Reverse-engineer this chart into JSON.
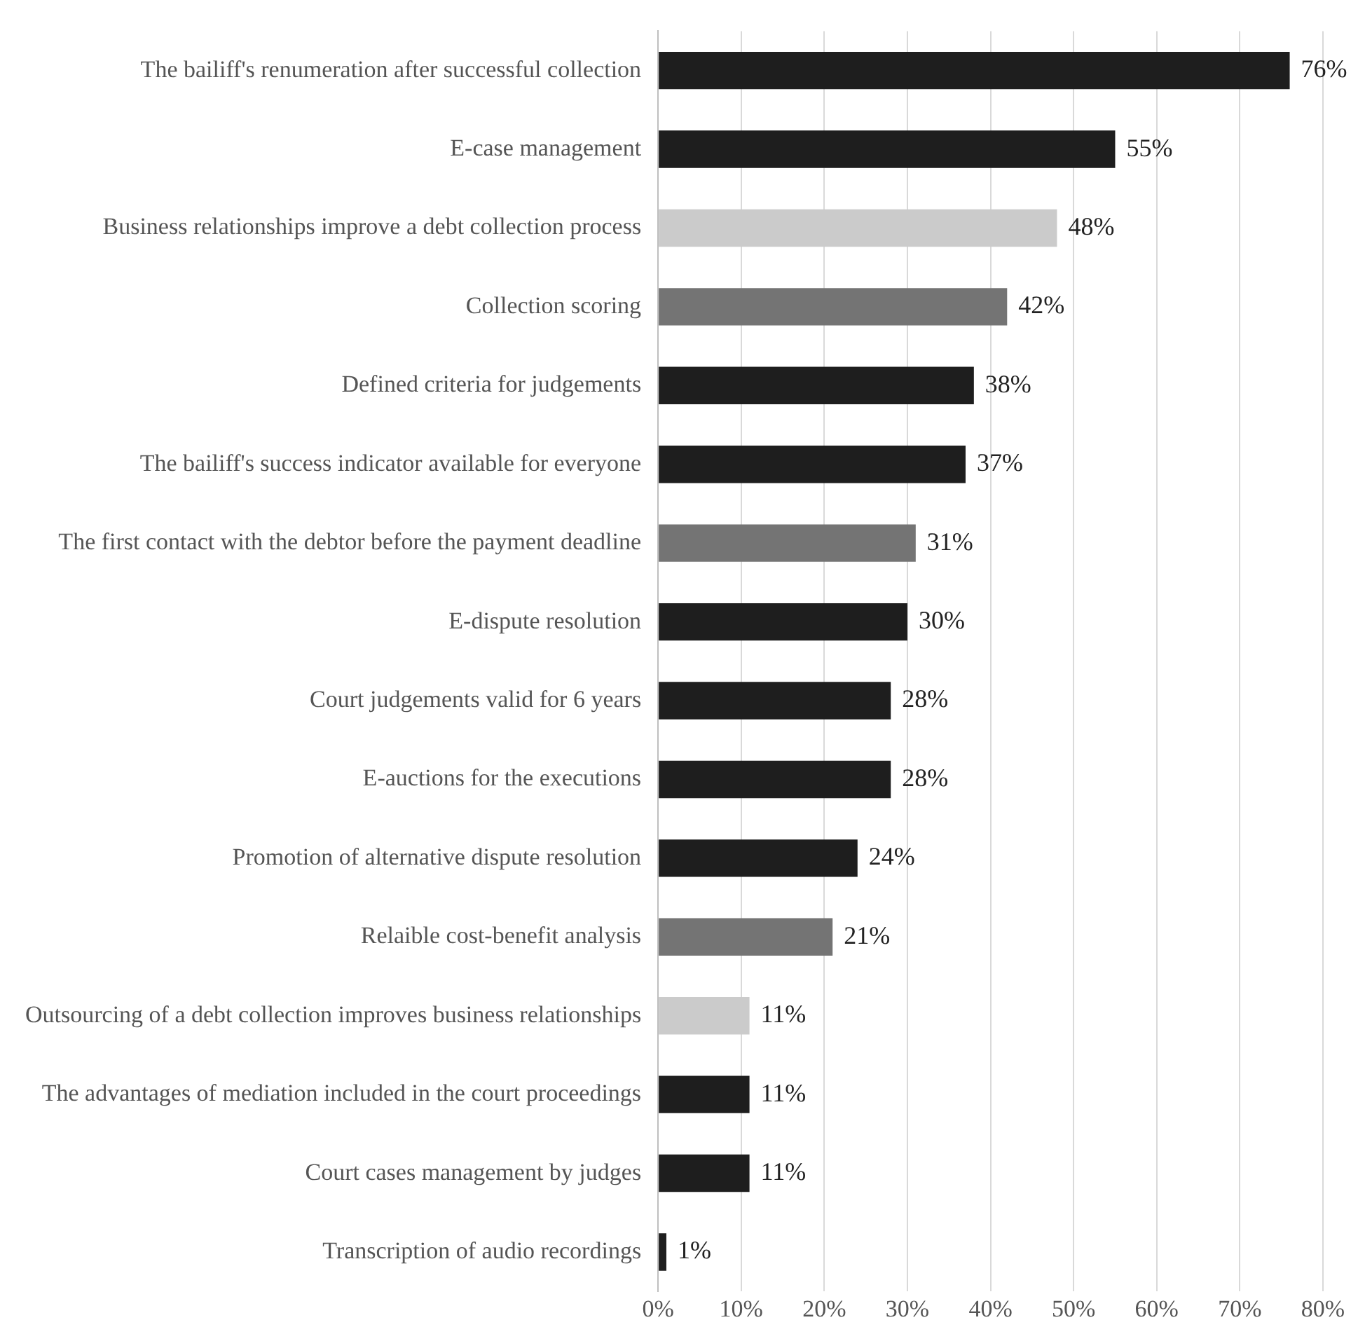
{
  "chart_data": {
    "type": "bar",
    "orientation": "horizontal",
    "categories": [
      "The bailiff's renumeration after successful collection",
      "E-case management",
      "Business relationships improve a debt collection process",
      "Collection scoring",
      "Defined criteria for judgements",
      "The bailiff's success indicator available for everyone",
      "The first contact with the debtor before the payment deadline",
      "E-dispute resolution",
      "Court judgements valid for 6 years",
      "E-auctions for the executions",
      "Promotion of alternative dispute resolution",
      "Relaible cost-benefit analysis",
      "Outsourcing of a debt collection improves business relationships",
      "The advantages of mediation included in the court proceedings",
      "Court cases management by judges",
      "Transcription of audio recordings"
    ],
    "values": [
      76,
      55,
      48,
      42,
      38,
      37,
      31,
      30,
      28,
      28,
      24,
      21,
      11,
      11,
      11,
      1
    ],
    "colors": [
      "#1e1e1e",
      "#1e1e1e",
      "#cbcbcb",
      "#747474",
      "#1e1e1e",
      "#1e1e1e",
      "#747474",
      "#1e1e1e",
      "#1e1e1e",
      "#1e1e1e",
      "#1e1e1e",
      "#747474",
      "#cbcbcb",
      "#1e1e1e",
      "#1e1e1e",
      "#1e1e1e"
    ],
    "value_labels": [
      "76%",
      "55%",
      "48%",
      "42%",
      "38%",
      "37%",
      "31%",
      "30%",
      "28%",
      "28%",
      "24%",
      "21%",
      "11%",
      "11%",
      "11%",
      "1%"
    ],
    "xlim": [
      0,
      80
    ],
    "xticks": [
      {
        "value": 0,
        "label": "0%"
      },
      {
        "value": 10,
        "label": "10%"
      },
      {
        "value": 20,
        "label": "20%"
      },
      {
        "value": 30,
        "label": "30%"
      },
      {
        "value": 40,
        "label": "40%"
      },
      {
        "value": 50,
        "label": "50%"
      },
      {
        "value": 60,
        "label": "60%"
      },
      {
        "value": 70,
        "label": "70%"
      },
      {
        "value": 80,
        "label": "80%"
      }
    ],
    "grid": "x",
    "legend": false
  }
}
